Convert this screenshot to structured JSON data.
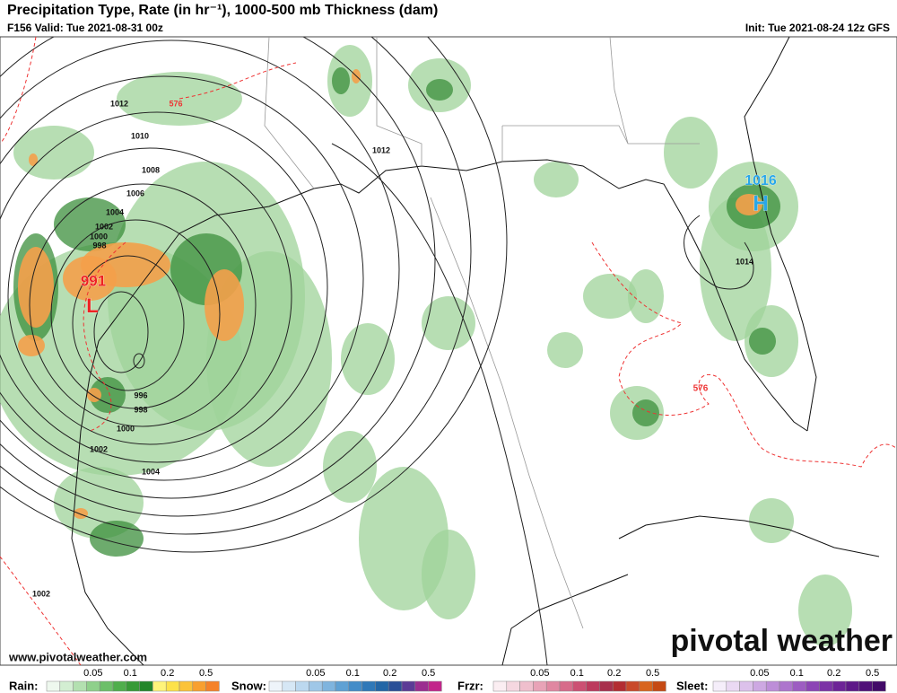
{
  "header": {
    "title": "Precipitation Type, Rate (in hr⁻¹), 1000-500 mb Thickness (dam)",
    "valid": "F156 Valid: Tue 2021-08-31 00z",
    "init": "Init: Tue 2021-08-24 12z GFS"
  },
  "map": {
    "labels": [
      "1012",
      "576",
      "1010",
      "1008",
      "1006",
      "1004",
      "1002",
      "1000",
      "998",
      "991",
      "L",
      "996",
      "998",
      "1000",
      "1002",
      "1004",
      "1002",
      "1012",
      "1014",
      "576",
      "1016",
      "H"
    ]
  },
  "brand": {
    "name": "pivotal weather",
    "url": "www.pivotalweather.com"
  },
  "legend": [
    {
      "label": "Rain:",
      "ticks": [
        "0.05",
        "0.1",
        "0.2",
        "0.5"
      ]
    },
    {
      "label": "Snow:",
      "ticks": [
        "0.05",
        "0.1",
        "0.2",
        "0.5"
      ]
    },
    {
      "label": "Frzr:",
      "ticks": [
        "0.05",
        "0.1",
        "0.2",
        "0.5"
      ]
    },
    {
      "label": "Sleet:",
      "ticks": [
        "0.05",
        "0.1",
        "0.2",
        "0.5"
      ]
    }
  ]
}
